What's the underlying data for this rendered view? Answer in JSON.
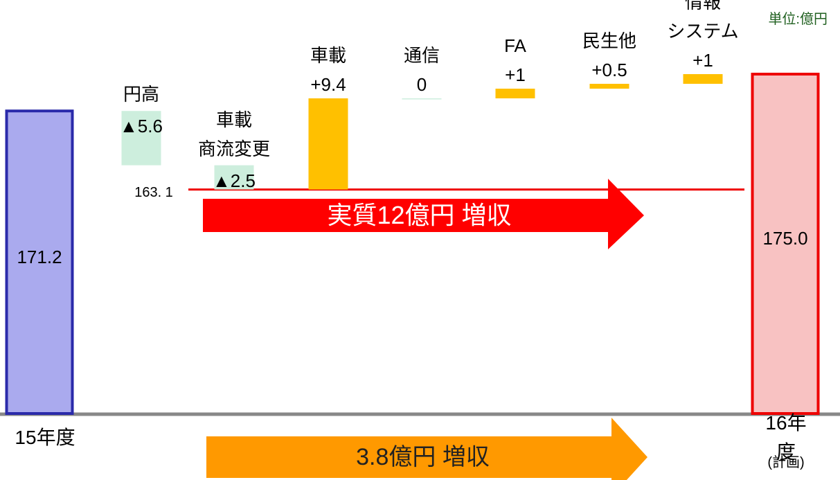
{
  "chart_data": {
    "type": "waterfall",
    "unit_note": "単位:億円",
    "categories": [
      "15年度",
      "円高",
      "車載\n商流変更",
      "車載",
      "通信",
      "FA",
      "民生他",
      "情報\nシステム",
      "16年度"
    ],
    "category_note": "(計画)",
    "measure": [
      "absolute",
      "relative",
      "relative",
      "relative",
      "relative",
      "relative",
      "relative",
      "relative",
      "absolute"
    ],
    "values": [
      171.2,
      -5.6,
      -2.5,
      9.4,
      0,
      1,
      0.5,
      1,
      175.0
    ],
    "value_labels": [
      "171.2",
      "▲5.6",
      "▲2.5",
      "+9.4",
      "0",
      "+1",
      "+0.5",
      "+1",
      "175.0"
    ],
    "colors": [
      "#aaaaee",
      "#cdeedd",
      "#cdeedd",
      "#ffc000",
      "#cdeedd",
      "#ffc000",
      "#ffc000",
      "#ffc000",
      "#f8c2c2"
    ],
    "edge_colors": [
      "#2a2aaa",
      null,
      null,
      null,
      null,
      null,
      null,
      null,
      "#ee0000"
    ],
    "ylim": [
      140,
      177
    ],
    "reference_line": {
      "value": 163.1,
      "label": "163. 1",
      "color": "#ee0000"
    },
    "arrows": [
      {
        "text": "実質12億円 増収",
        "color": "#ff0000",
        "text_color": "#ffffff"
      },
      {
        "text": "3.8億円 増収",
        "color": "#ff9900",
        "text_color": "#222222"
      }
    ]
  }
}
